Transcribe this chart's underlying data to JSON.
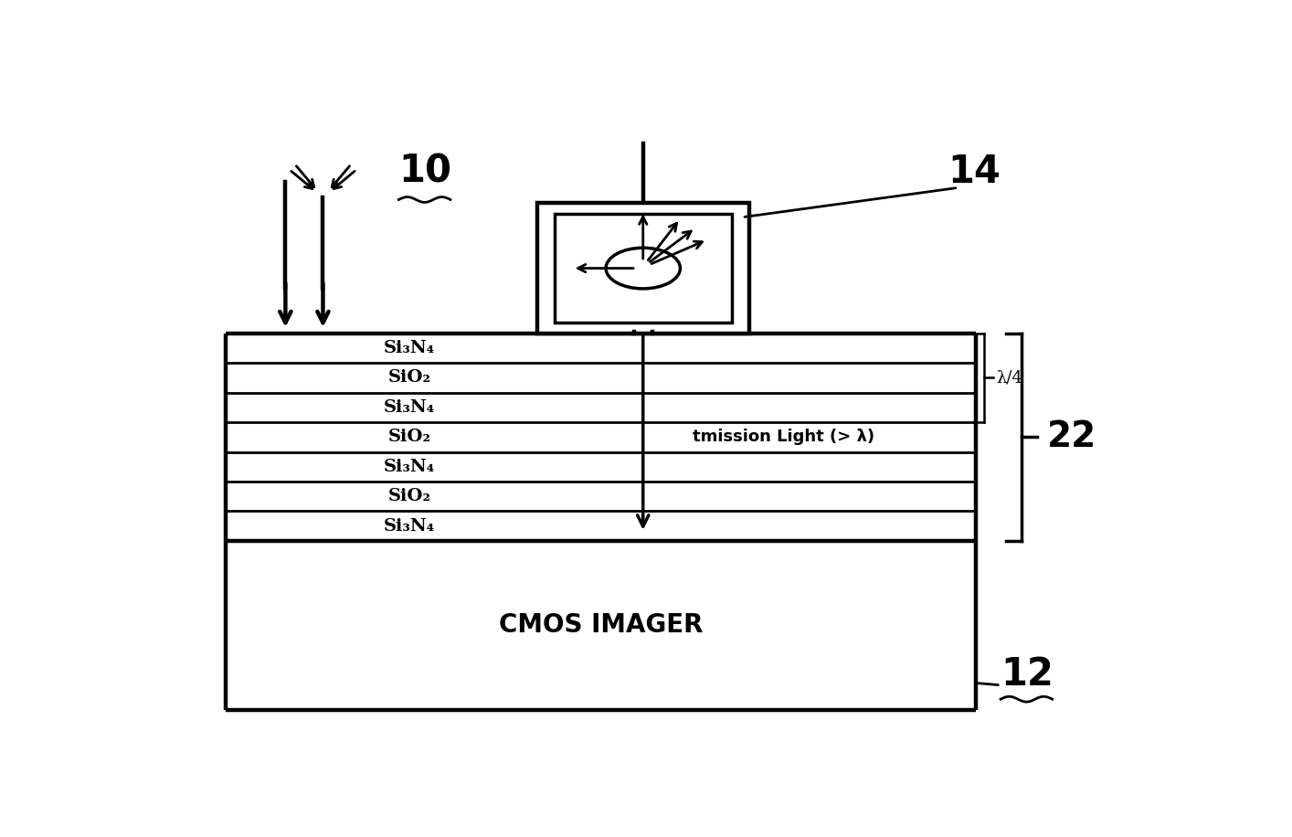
{
  "bg_color": "#ffffff",
  "line_color": "#000000",
  "fig_width": 14.14,
  "fig_height": 9.16,
  "layers": [
    "Si₃N₄",
    "SiO₂",
    "Si₃N₄",
    "SiO₂",
    "Si₃N₄",
    "SiO₂",
    "Si₃N₄"
  ],
  "cmos_label": "CMOS IMAGER",
  "label_10": "10",
  "label_12": "12",
  "label_14": "14",
  "label_22": "22",
  "lambda_label": "λ/4",
  "transmission_label": "tmission Light (> λ)"
}
